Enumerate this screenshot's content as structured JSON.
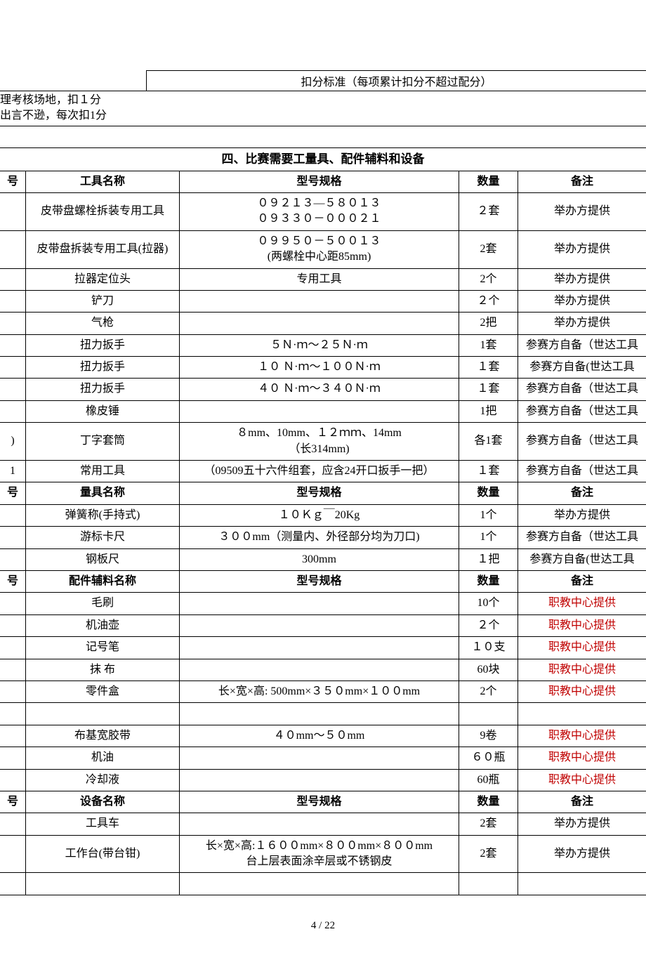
{
  "colors": {
    "text": "#000000",
    "red": "#c00000",
    "background": "#ffffff",
    "border": "#000000"
  },
  "top": {
    "header": "扣分标准（每项累计扣分不超过配分）",
    "line1": "理考核场地，扣１分",
    "line2": "出言不逊，每次扣1分"
  },
  "section_title": "四、比赛需要工量具、配件辅料和设备",
  "headers": {
    "idx": "号",
    "tool_name": "工具名称",
    "measure_name": "量具名称",
    "part_name": "配件辅料名称",
    "equip_name": "设备名称",
    "spec": "型号规格",
    "qty": "数量",
    "note": "备注"
  },
  "tools": [
    {
      "idx": "",
      "name": "皮带盘螺栓拆装专用工具",
      "spec": "０９２１３—５８０１３\n０９３３０－０００２１",
      "qty": "２套",
      "note": "举办方提供"
    },
    {
      "idx": "",
      "name": "皮带盘拆装专用工具(拉器)",
      "spec": "０９９５０－５００１３\n(两螺栓中心距85mm)",
      "qty": "2套",
      "note": "举办方提供"
    },
    {
      "idx": "",
      "name": "拉器定位头",
      "spec": "专用工具",
      "qty": "2个",
      "note": "举办方提供"
    },
    {
      "idx": "",
      "name": "铲刀",
      "spec": "",
      "qty": "２个",
      "note": "举办方提供"
    },
    {
      "idx": "",
      "name": "气枪",
      "spec": "",
      "qty": "2把",
      "note": "举办方提供"
    },
    {
      "idx": "",
      "name": "扭力扳手",
      "spec": "５Ｎ·ｍ～２５Ｎ·ｍ",
      "qty": "1套",
      "note": "参赛方自备（世达工具"
    },
    {
      "idx": "",
      "name": "扭力扳手",
      "spec": "１０ Ｎ·ｍ～１００Ｎ·ｍ",
      "qty": "１套",
      "note": "参赛方自备(世达工具"
    },
    {
      "idx": "",
      "name": "扭力扳手",
      "spec": "４０  Ｎ·ｍ～３４０Ｎ·ｍ",
      "qty": "１套",
      "note": "参赛方自备（世达工具"
    },
    {
      "idx": "",
      "name": "橡皮锤",
      "spec": "",
      "qty": "1把",
      "note": "参赛方自备（世达工具"
    },
    {
      "idx": ")",
      "name": "丁字套筒",
      "spec": "８mm、10mm、１２ｍｍ、14mm\n（长314mm)",
      "qty": "各1套",
      "note": "参赛方自备（世达工具"
    },
    {
      "idx": "1",
      "name": "常用工具",
      "spec": "（09509五十六件组套，应含24开口扳手一把）",
      "qty": "１套",
      "note": "参赛方自备（世达工具"
    }
  ],
  "measures": [
    {
      "idx": "",
      "name": "弹簧称(手持式)",
      "spec": "１０Ｋｇ￣20Kg",
      "qty": "1个",
      "note": "举办方提供",
      "red": false
    },
    {
      "idx": "",
      "name": "游标卡尺",
      "spec": "３００mm（测量内、外径部分均为刀口)",
      "qty": "1个",
      "note": "参赛方自备（世达工具",
      "red": false
    },
    {
      "idx": "",
      "name": "钢板尺",
      "spec": "300mm",
      "qty": "１把",
      "note": "参赛方自备(世达工具",
      "red": false
    }
  ],
  "parts": [
    {
      "idx": "",
      "name": "毛刷",
      "spec": "",
      "qty": "10个",
      "note": "职教中心提供",
      "red": true
    },
    {
      "idx": "",
      "name": "机油壶",
      "spec": "",
      "qty": "２个",
      "note": "职教中心提供",
      "red": true
    },
    {
      "idx": "",
      "name": "记号笔",
      "spec": "",
      "qty": "１０支",
      "note": "职教中心提供",
      "red": true
    },
    {
      "idx": "",
      "name": "抹  布",
      "spec": "",
      "qty": "60块",
      "note": "职教中心提供",
      "red": true
    },
    {
      "idx": "",
      "name": "零件盒",
      "spec": "长×宽×高:  500mm×３５０mm×１００mm",
      "qty": "2个",
      "note": "职教中心提供",
      "red": true
    },
    {
      "idx": "",
      "name": "布基宽胶带",
      "spec": "４０mm～５０mm",
      "qty": "9卷",
      "note": "职教中心提供",
      "red": true
    },
    {
      "idx": "",
      "name": "机油",
      "spec": "",
      "qty": "６０瓶",
      "note": "职教中心提供",
      "red": true
    },
    {
      "idx": "",
      "name": "冷却液",
      "spec": "",
      "qty": "60瓶",
      "note": "职教中心提供",
      "red": true
    }
  ],
  "equipment": [
    {
      "idx": "",
      "name": "工具车",
      "spec": "",
      "qty": "2套",
      "note": "举办方提供"
    },
    {
      "idx": "",
      "name": "工作台(带台钳)",
      "spec": "长×宽×高:１６００mm×８００mm×８００mm\n台上层表面涂辛层或不锈钢皮",
      "qty": "2套",
      "note": "举办方提供"
    }
  ],
  "page_number": "4 / 22"
}
